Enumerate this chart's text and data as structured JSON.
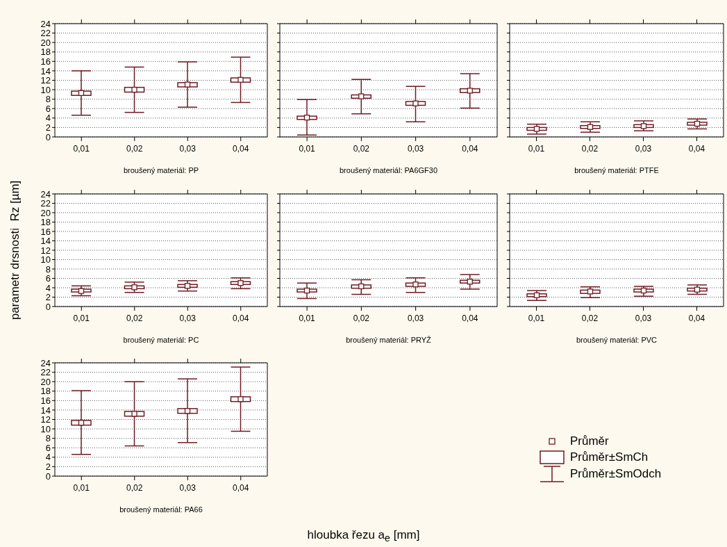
{
  "chart_data": [
    {
      "type": "box",
      "title": "broušený materiál: PP",
      "categories": [
        "0,01",
        "0,02",
        "0,03",
        "0,04"
      ],
      "color": "#6e1a22",
      "ylim": [
        0,
        24
      ],
      "yticks": [
        0,
        2,
        4,
        6,
        8,
        10,
        12,
        14,
        16,
        18,
        20,
        22,
        24
      ],
      "grid": "y",
      "boxes": [
        {
          "low": 4.6,
          "q1": 8.8,
          "mean": 9.3,
          "q3": 9.7,
          "high": 14.0
        },
        {
          "low": 5.2,
          "q1": 9.5,
          "mean": 10.0,
          "q3": 10.5,
          "high": 14.8
        },
        {
          "low": 6.3,
          "q1": 10.6,
          "mean": 11.1,
          "q3": 11.5,
          "high": 15.9
        },
        {
          "low": 7.3,
          "q1": 11.6,
          "mean": 12.1,
          "q3": 12.5,
          "high": 16.9
        }
      ]
    },
    {
      "type": "box",
      "title": "broušený materiál: PA6GF30",
      "categories": [
        "0,01",
        "0,02",
        "0,03",
        "0,04"
      ],
      "color": "#6e1a22",
      "ylim": [
        0,
        24
      ],
      "yticks": [
        0,
        2,
        4,
        6,
        8,
        10,
        12,
        14,
        16,
        18,
        20,
        22,
        24
      ],
      "grid": "y",
      "tick_labels": "x",
      "boxes": [
        {
          "low": 0.4,
          "q1": 3.7,
          "mean": 4.1,
          "q3": 4.4,
          "high": 7.9
        },
        {
          "low": 4.9,
          "q1": 8.2,
          "mean": 8.6,
          "q3": 8.9,
          "high": 12.2
        },
        {
          "low": 3.2,
          "q1": 6.7,
          "mean": 7.1,
          "q3": 7.5,
          "high": 10.7
        },
        {
          "low": 6.1,
          "q1": 9.4,
          "mean": 9.8,
          "q3": 10.2,
          "high": 13.4
        }
      ]
    },
    {
      "type": "box",
      "title": "broušený materiál: PTFE",
      "categories": [
        "0,01",
        "0,02",
        "0,03",
        "0,04"
      ],
      "color": "#6e1a22",
      "ylim": [
        0,
        24
      ],
      "yticks": [
        0,
        2,
        4,
        6,
        8,
        10,
        12,
        14,
        16,
        18,
        20,
        22,
        24
      ],
      "grid": "y",
      "tick_labels": "x",
      "boxes": [
        {
          "low": 0.6,
          "q1": 1.4,
          "mean": 1.7,
          "q3": 2.0,
          "high": 2.7
        },
        {
          "low": 1.0,
          "q1": 1.8,
          "mean": 2.1,
          "q3": 2.4,
          "high": 3.2
        },
        {
          "low": 1.3,
          "q1": 2.0,
          "mean": 2.3,
          "q3": 2.6,
          "high": 3.4
        },
        {
          "low": 1.7,
          "q1": 2.5,
          "mean": 2.8,
          "q3": 3.1,
          "high": 3.8
        }
      ]
    },
    {
      "type": "box",
      "title": "broušený materiál: PC",
      "ylabel": "parametr drsnosti  Rz [µm]",
      "categories": [
        "0,01",
        "0,02",
        "0,03",
        "0,04"
      ],
      "color": "#6e1a22",
      "ylim": [
        0,
        24
      ],
      "yticks": [
        0,
        2,
        4,
        6,
        8,
        10,
        12,
        14,
        16,
        18,
        20,
        22,
        24
      ],
      "grid": "y",
      "boxes": [
        {
          "low": 2.3,
          "q1": 3.1,
          "mean": 3.3,
          "q3": 3.7,
          "high": 4.4
        },
        {
          "low": 3.0,
          "q1": 3.8,
          "mean": 4.1,
          "q3": 4.4,
          "high": 5.2
        },
        {
          "low": 3.3,
          "q1": 4.1,
          "mean": 4.4,
          "q3": 4.7,
          "high": 5.5
        },
        {
          "low": 3.8,
          "q1": 4.7,
          "mean": 5.0,
          "q3": 5.3,
          "high": 6.1
        }
      ]
    },
    {
      "type": "box",
      "title": "broušený materiál: PRYŽ",
      "categories": [
        "0,01",
        "0,02",
        "0,03",
        "0,04"
      ],
      "color": "#6e1a22",
      "ylim": [
        0,
        24
      ],
      "yticks": [
        0,
        2,
        4,
        6,
        8,
        10,
        12,
        14,
        16,
        18,
        20,
        22,
        24
      ],
      "grid": "y",
      "tick_labels": "x",
      "boxes": [
        {
          "low": 1.7,
          "q1": 3.1,
          "mean": 3.4,
          "q3": 3.7,
          "high": 5.0
        },
        {
          "low": 2.6,
          "q1": 3.9,
          "mean": 4.3,
          "q3": 4.6,
          "high": 5.7
        },
        {
          "low": 3.0,
          "q1": 4.3,
          "mean": 4.7,
          "q3": 5.0,
          "high": 6.1
        },
        {
          "low": 3.7,
          "q1": 5.0,
          "mean": 5.3,
          "q3": 5.6,
          "high": 6.8
        }
      ]
    },
    {
      "type": "box",
      "title": "broušený materiál: PVC",
      "categories": [
        "0,01",
        "0,02",
        "0,03",
        "0,04"
      ],
      "color": "#6e1a22",
      "ylim": [
        0,
        24
      ],
      "yticks": [
        0,
        2,
        4,
        6,
        8,
        10,
        12,
        14,
        16,
        18,
        20,
        22,
        24
      ],
      "grid": "y",
      "tick_labels": "x",
      "boxes": [
        {
          "low": 1.3,
          "q1": 2.1,
          "mean": 2.4,
          "q3": 2.7,
          "high": 3.4
        },
        {
          "low": 1.9,
          "q1": 2.8,
          "mean": 3.2,
          "q3": 3.5,
          "high": 4.2
        },
        {
          "low": 2.2,
          "q1": 3.1,
          "mean": 3.4,
          "q3": 3.7,
          "high": 4.3
        },
        {
          "low": 2.6,
          "q1": 3.3,
          "mean": 3.6,
          "q3": 3.9,
          "high": 4.6
        }
      ]
    },
    {
      "type": "box",
      "title": "broušený materiál: PA66",
      "xlabel": "hloubka řezu a$_{e}$ [mm]",
      "categories": [
        "0,01",
        "0,02",
        "0,03",
        "0,04"
      ],
      "color": "#6e1a22",
      "ylim": [
        0,
        24
      ],
      "yticks": [
        0,
        2,
        4,
        6,
        8,
        10,
        12,
        14,
        16,
        18,
        20,
        22,
        24
      ],
      "grid": "y",
      "annotations": [
        "Průměr",
        "Průměr±SmCh",
        "Průměr±SmOdch"
      ],
      "boxes": [
        {
          "low": 4.6,
          "q1": 10.8,
          "mean": 11.3,
          "q3": 11.8,
          "high": 18.1
        },
        {
          "low": 6.4,
          "q1": 12.7,
          "mean": 13.2,
          "q3": 13.7,
          "high": 20.0
        },
        {
          "low": 7.1,
          "q1": 13.3,
          "mean": 13.8,
          "q3": 14.3,
          "high": 20.6
        },
        {
          "low": 9.5,
          "q1": 15.8,
          "mean": 16.3,
          "q3": 16.8,
          "high": 23.1
        }
      ]
    }
  ]
}
